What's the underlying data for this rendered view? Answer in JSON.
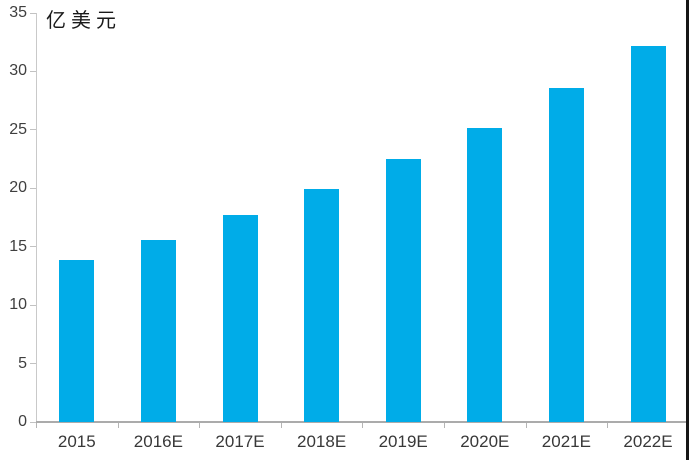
{
  "chart_data": {
    "type": "bar",
    "title": "",
    "unit_label": "亿美元",
    "ylabel": "亿美元",
    "xlabel": "",
    "categories": [
      "2015",
      "2016E",
      "2017E",
      "2018E",
      "2019E",
      "2020E",
      "2021E",
      "2022E"
    ],
    "values": [
      13.9,
      15.6,
      17.7,
      19.9,
      22.5,
      25.2,
      28.6,
      32.2
    ],
    "ylim": [
      0,
      35
    ],
    "yticks": [
      0,
      5,
      10,
      15,
      20,
      25,
      30,
      35
    ],
    "grid": false,
    "legend": "none",
    "bar_color": "#00ACE8",
    "axis_color": "#c9c9c9",
    "tick_label_color": "#3f3f3f"
  }
}
